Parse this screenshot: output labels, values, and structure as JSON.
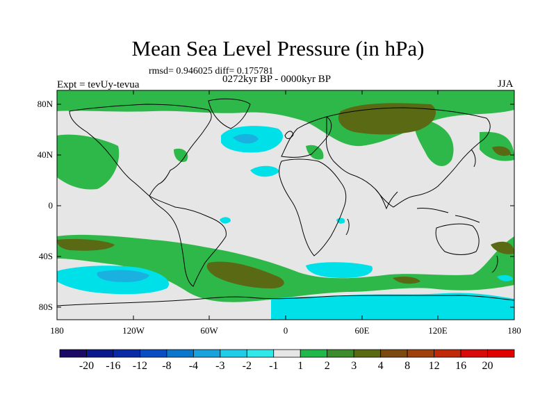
{
  "title": "Mean Sea Level Pressure (in hPa)",
  "stats": "rmsd= 0.946025  diff= 0.175781",
  "period": "0272kyr BP - 0000kyr BP",
  "experiment": "Expt = tevUy-tevua",
  "season": "JJA",
  "lat_labels": [
    "80N",
    "40N",
    "0",
    "40S",
    "80S"
  ],
  "lon_labels": [
    "180",
    "120W",
    "60W",
    "0",
    "60E",
    "120E",
    "180"
  ],
  "colorbar": {
    "labels": [
      "-20",
      "-16",
      "-12",
      "-8",
      "-4",
      "-3",
      "-2",
      "-1",
      "1",
      "2",
      "3",
      "4",
      "8",
      "12",
      "16",
      "20"
    ],
    "colors": [
      "#1a0a66",
      "#0a1a8c",
      "#0a2aa6",
      "#0a4cc2",
      "#0a76cc",
      "#1aa2dc",
      "#20cce8",
      "#30e8e8",
      "#e6e6e6",
      "#20b848",
      "#3c8c2c",
      "#5a6a14",
      "#7a4a10",
      "#a0400c",
      "#c02a08",
      "#d80a0a",
      "#e00000"
    ]
  },
  "legend_colors": {
    "neutral": "#e6e6e6",
    "green_light": "#2fb84a",
    "green_dark": "#5a6a14",
    "cyan_light": "#00e0e8",
    "cyan_mid": "#1ab0e0"
  }
}
